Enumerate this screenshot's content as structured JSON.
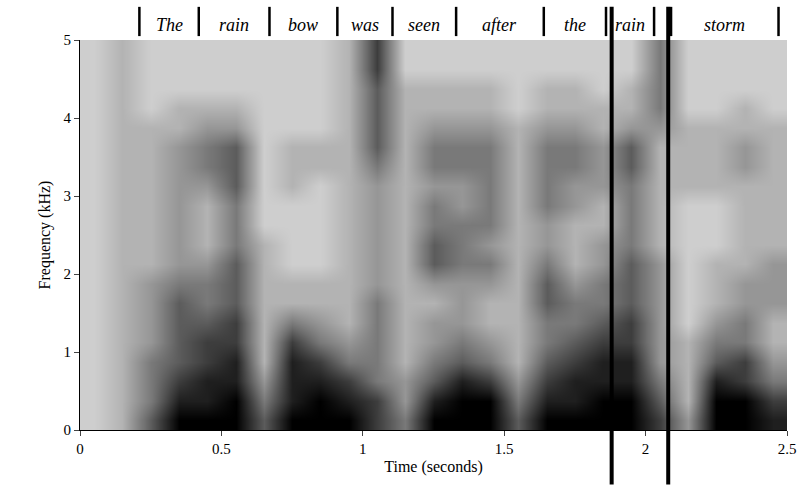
{
  "chart_data": {
    "type": "heatmap",
    "xlabel": "Time (seconds)",
    "ylabel": "Frequency (kHz)",
    "xlim": [
      0,
      2.5
    ],
    "xticks": [
      0,
      0.5,
      1,
      1.5,
      2,
      2.5
    ],
    "ylim": [
      0,
      5
    ],
    "yticks": [
      0,
      1,
      2,
      3,
      4,
      5
    ],
    "zlim": [
      0,
      9
    ],
    "x": [
      0.05,
      0.15,
      0.25,
      0.35,
      0.45,
      0.55,
      0.65,
      0.75,
      0.85,
      0.95,
      1.05,
      1.15,
      1.25,
      1.35,
      1.45,
      1.55,
      1.65,
      1.75,
      1.85,
      1.95,
      2.05,
      2.15,
      2.25,
      2.35,
      2.45
    ],
    "y": [
      0.125,
      0.375,
      0.625,
      0.875,
      1.125,
      1.375,
      1.625,
      1.875,
      2.125,
      2.375,
      2.625,
      2.875,
      3.125,
      3.375,
      3.625,
      3.875,
      4.125,
      4.375,
      4.625,
      4.875
    ],
    "z": [
      [
        2,
        3,
        6,
        9,
        9,
        9,
        6,
        9,
        9,
        9,
        7,
        5,
        9,
        9,
        9,
        6,
        9,
        9,
        9,
        9,
        7,
        4,
        9,
        9,
        8
      ],
      [
        2,
        3,
        5,
        8,
        8,
        9,
        5,
        8,
        9,
        8,
        7,
        4,
        8,
        9,
        9,
        5,
        8,
        8,
        9,
        9,
        6,
        3,
        9,
        9,
        7
      ],
      [
        2,
        3,
        5,
        7,
        8,
        8,
        4,
        8,
        8,
        7,
        5,
        4,
        6,
        8,
        7,
        4,
        7,
        8,
        8,
        8,
        5,
        3,
        8,
        7,
        5
      ],
      [
        2,
        3,
        5,
        6,
        7,
        8,
        3,
        8,
        7,
        5,
        5,
        3,
        5,
        6,
        5,
        3,
        6,
        7,
        8,
        8,
        4,
        3,
        6,
        7,
        4
      ],
      [
        2,
        3,
        4,
        6,
        7,
        7,
        3,
        7,
        5,
        4,
        5,
        3,
        4,
        5,
        4,
        3,
        5,
        6,
        7,
        7,
        4,
        3,
        5,
        5,
        3
      ],
      [
        2,
        3,
        4,
        6,
        6,
        7,
        3,
        5,
        4,
        3,
        5,
        3,
        4,
        4,
        3,
        3,
        5,
        5,
        6,
        7,
        4,
        2,
        4,
        5,
        3
      ],
      [
        2,
        3,
        4,
        6,
        5,
        6,
        3,
        3,
        3,
        3,
        5,
        3,
        3,
        4,
        3,
        3,
        6,
        5,
        5,
        6,
        4,
        2,
        3,
        4,
        4
      ],
      [
        2,
        3,
        4,
        5,
        5,
        6,
        3,
        3,
        3,
        3,
        4,
        3,
        4,
        4,
        4,
        3,
        6,
        4,
        5,
        6,
        4,
        2,
        3,
        4,
        4
      ],
      [
        2,
        3,
        3,
        4,
        4,
        6,
        3,
        2,
        2,
        3,
        4,
        3,
        6,
        5,
        5,
        3,
        5,
        3,
        4,
        6,
        4,
        2,
        3,
        3,
        4
      ],
      [
        2,
        3,
        3,
        4,
        3,
        5,
        3,
        2,
        2,
        3,
        4,
        3,
        6,
        5,
        4,
        3,
        4,
        3,
        4,
        5,
        3,
        2,
        2,
        3,
        3
      ],
      [
        2,
        3,
        3,
        4,
        3,
        5,
        2,
        2,
        2,
        3,
        4,
        3,
        5,
        5,
        5,
        3,
        4,
        3,
        3,
        5,
        3,
        2,
        2,
        3,
        3
      ],
      [
        2,
        3,
        3,
        4,
        3,
        5,
        2,
        2,
        2,
        3,
        4,
        3,
        5,
        4,
        5,
        3,
        5,
        4,
        3,
        5,
        3,
        2,
        2,
        3,
        3
      ],
      [
        2,
        3,
        3,
        4,
        4,
        6,
        2,
        3,
        2,
        3,
        4,
        3,
        4,
        4,
        5,
        3,
        5,
        4,
        4,
        5,
        3,
        3,
        3,
        3,
        3
      ],
      [
        2,
        3,
        3,
        4,
        5,
        6,
        2,
        3,
        3,
        3,
        5,
        3,
        5,
        5,
        5,
        3,
        5,
        5,
        4,
        6,
        3,
        3,
        3,
        4,
        3
      ],
      [
        2,
        3,
        3,
        4,
        5,
        6,
        2,
        3,
        3,
        3,
        6,
        3,
        5,
        5,
        5,
        3,
        5,
        5,
        4,
        6,
        3,
        3,
        3,
        4,
        3
      ],
      [
        2,
        3,
        3,
        3,
        4,
        4,
        2,
        2,
        2,
        3,
        6,
        3,
        4,
        4,
        4,
        3,
        4,
        4,
        3,
        4,
        4,
        3,
        3,
        3,
        3
      ],
      [
        2,
        3,
        2,
        3,
        3,
        3,
        2,
        2,
        2,
        3,
        6,
        3,
        3,
        3,
        3,
        2,
        3,
        3,
        3,
        3,
        5,
        2,
        2,
        3,
        2
      ],
      [
        2,
        3,
        2,
        2,
        2,
        2,
        2,
        2,
        2,
        3,
        6,
        3,
        3,
        3,
        3,
        2,
        3,
        3,
        2,
        3,
        5,
        2,
        2,
        2,
        2
      ],
      [
        2,
        3,
        2,
        2,
        2,
        2,
        2,
        2,
        2,
        3,
        7,
        2,
        2,
        2,
        2,
        2,
        2,
        2,
        2,
        2,
        5,
        2,
        2,
        2,
        2
      ],
      [
        2,
        3,
        2,
        2,
        2,
        2,
        2,
        2,
        2,
        3,
        7,
        2,
        2,
        2,
        2,
        2,
        2,
        2,
        2,
        2,
        5,
        2,
        2,
        2,
        2
      ]
    ],
    "words": [
      {
        "text": "The",
        "start": 0.21,
        "end": 0.42
      },
      {
        "text": "rain",
        "start": 0.42,
        "end": 0.67
      },
      {
        "text": "bow",
        "start": 0.67,
        "end": 0.91
      },
      {
        "text": "was",
        "start": 0.91,
        "end": 1.105
      },
      {
        "text": "seen",
        "start": 1.105,
        "end": 1.33
      },
      {
        "text": "after",
        "start": 1.33,
        "end": 1.64
      },
      {
        "text": "the",
        "start": 1.64,
        "end": 1.86
      },
      {
        "text": "rain",
        "start": 1.86,
        "end": 2.03
      },
      {
        "text": "storm",
        "start": 2.09,
        "end": 2.47
      }
    ],
    "markers": [
      1.88,
      2.08
    ]
  }
}
